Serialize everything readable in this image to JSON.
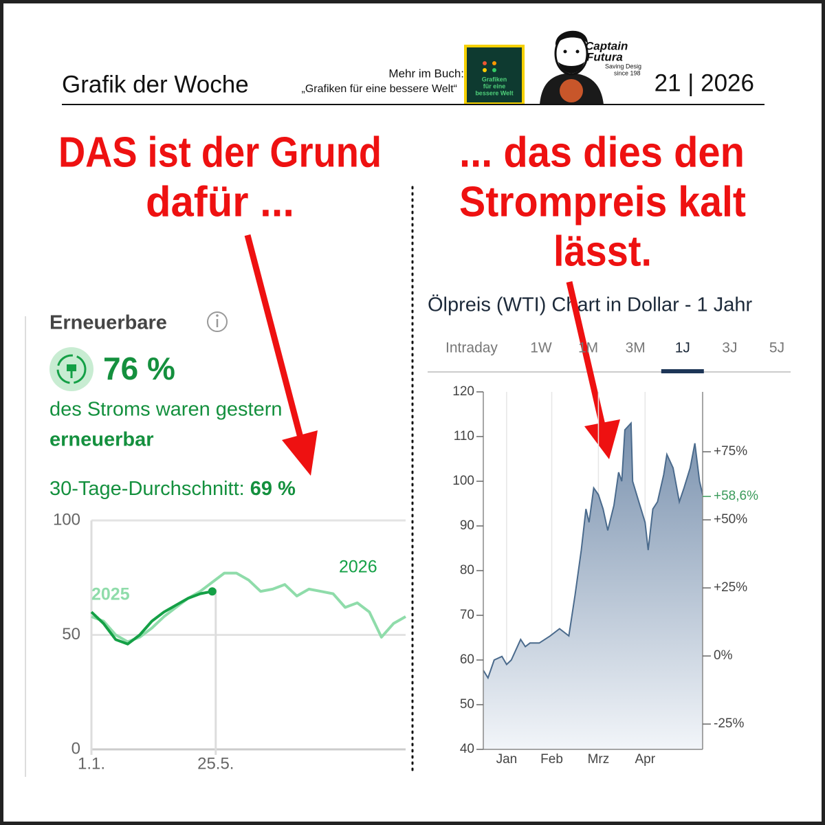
{
  "header": {
    "title": "Grafik der Woche",
    "book_note": "Mehr im Buch:",
    "book_title": "„Grafiken für eine bessere Welt“",
    "book_cover_title": [
      "Grafiken",
      "für eine",
      "bessere Welt"
    ],
    "brand": [
      "Captain",
      "Futura"
    ],
    "brand_tagline": "Saving Desig",
    "brand_since": "since 198",
    "issue": "21 | 2026"
  },
  "headline_left": [
    "DAS ist der Grund",
    "dafür ..."
  ],
  "headline_right": [
    "... das dies den",
    "Strompreis kalt",
    "lässt."
  ],
  "kpi": {
    "label": "Erneuerbare",
    "value": "76 %",
    "caption": "des Stroms waren gestern",
    "caption_bold": "erneuerbar",
    "average_label": "30-Tage-Durchschnitt:",
    "average_value": "69 %"
  },
  "chart_data": [
    {
      "type": "line",
      "x": [
        1,
        15,
        29,
        43,
        57,
        71,
        85,
        99,
        113,
        127,
        141,
        155,
        169,
        183,
        197,
        211,
        225,
        239,
        253,
        267,
        281,
        295,
        309,
        323,
        337,
        351,
        365
      ],
      "series": [
        {
          "name": "2025",
          "color": "#8fdcaa",
          "values": [
            58,
            56,
            50,
            47,
            49,
            53,
            58,
            62,
            66,
            69,
            73,
            77,
            77,
            74,
            69,
            70,
            72,
            67,
            70,
            69,
            68,
            62,
            64,
            60,
            49,
            55,
            58
          ]
        },
        {
          "name": "2026",
          "color": "#14a046",
          "values": [
            60,
            55,
            48,
            46,
            50,
            56,
            60,
            63,
            66,
            68,
            69,
            null,
            null,
            null,
            null,
            null,
            null,
            null,
            null,
            null,
            null,
            null,
            null,
            null,
            null,
            null,
            null
          ]
        }
      ],
      "marker_last": true,
      "xlim": [
        1,
        365
      ],
      "xticks": [
        {
          "value": 1,
          "label": "1.1."
        },
        {
          "value": 145,
          "label": "25.5."
        }
      ],
      "ylim": [
        0,
        100
      ],
      "yticks": [
        0,
        50,
        100
      ],
      "grid": "y"
    },
    {
      "type": "area",
      "title": "Ölpreis (WTI) Chart in Dollar - 1 Jahr",
      "tabs": [
        "Intraday",
        "1W",
        "1M",
        "3M",
        "1J",
        "3J",
        "5J"
      ],
      "active_tab": 4,
      "x": [
        1,
        4,
        8,
        13,
        16,
        19,
        25,
        28,
        31,
        37,
        44,
        50,
        56,
        60,
        64,
        67,
        69,
        72,
        75,
        78,
        81,
        85,
        88,
        90,
        92,
        96,
        97,
        101,
        105,
        107,
        110,
        113,
        117,
        119,
        123,
        127,
        130,
        134,
        137,
        140,
        142
      ],
      "series": [
        {
          "name": "WTI",
          "color": "#4a6a8c",
          "values": [
            57.7,
            56,
            60,
            60.8,
            59,
            60,
            64.6,
            63,
            63.8,
            63.8,
            65.4,
            67,
            65.4,
            74.6,
            84.6,
            93.8,
            90.8,
            98.5,
            97,
            93.8,
            89,
            94.6,
            102,
            100,
            111.5,
            113,
            100,
            95.4,
            90.8,
            84.6,
            93.8,
            95.4,
            101.5,
            106,
            103,
            95.4,
            98.5,
            103,
            108.5,
            100,
            97
          ]
        }
      ],
      "xlim": [
        1,
        142
      ],
      "xticks": [
        {
          "value": 16,
          "label": "Jan"
        },
        {
          "value": 45,
          "label": "Feb"
        },
        {
          "value": 75,
          "label": "Mrz"
        },
        {
          "value": 105,
          "label": "Apr"
        }
      ],
      "ylim": [
        40,
        120
      ],
      "yticks": [
        40,
        50,
        60,
        70,
        80,
        90,
        100,
        110,
        120
      ],
      "y2lim": [
        -34.3,
        97
      ],
      "y2ticks": [
        {
          "value": -25,
          "label": "-25%"
        },
        {
          "value": 0,
          "label": "0%"
        },
        {
          "value": 25,
          "label": "+25%"
        },
        {
          "value": 50,
          "label": "+50%"
        },
        {
          "value": 75,
          "label": "+75%"
        }
      ],
      "annotation": {
        "value": 58.6,
        "label": "+58,6%",
        "axis": "y2",
        "color": "#3a9a5a"
      },
      "grid": "x"
    }
  ]
}
